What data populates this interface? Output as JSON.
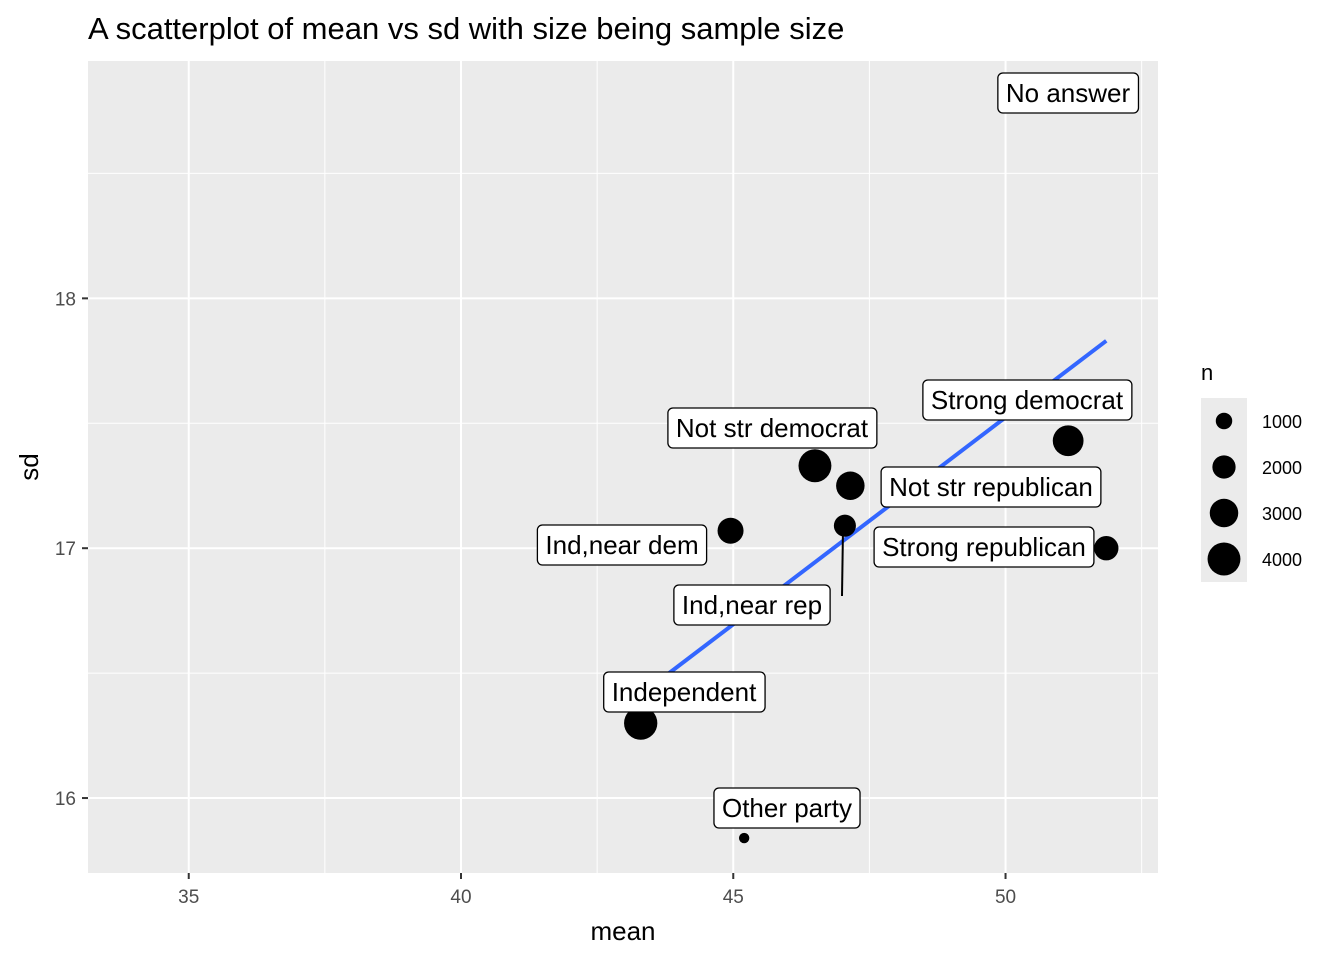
{
  "chart_data": {
    "type": "scatter",
    "title": "A scatterplot of mean vs sd with size being sample size",
    "xlabel": "mean",
    "ylabel": "sd",
    "xlim": [
      33.15,
      52.8
    ],
    "ylim": [
      15.7,
      18.95
    ],
    "x_ticks": [
      35,
      40,
      45,
      50
    ],
    "y_ticks": [
      16,
      17,
      18
    ],
    "grid": true,
    "points": [
      {
        "label": "No answer",
        "x": 52.0,
        "y": 19.0,
        "n": 150
      },
      {
        "label": "Strong democrat",
        "x": 51.15,
        "y": 17.43,
        "n": 3500
      },
      {
        "label": "Not str democrat",
        "x": 46.5,
        "y": 17.33,
        "n": 4000
      },
      {
        "label": "Not str republican",
        "x": 47.15,
        "y": 17.25,
        "n": 3000
      },
      {
        "label": "Ind,near dem",
        "x": 44.95,
        "y": 17.07,
        "n": 2500
      },
      {
        "label": "Ind,near rep",
        "x": 47.05,
        "y": 17.09,
        "n": 1800
      },
      {
        "label": "Strong republican",
        "x": 51.85,
        "y": 17.0,
        "n": 2200
      },
      {
        "label": "Independent",
        "x": 43.3,
        "y": 16.3,
        "n": 4100
      },
      {
        "label": "Other party",
        "x": 45.2,
        "y": 15.84,
        "n": 400
      }
    ],
    "trend_line": {
      "color": "#3366ff",
      "x": [
        43.7,
        51.85
      ],
      "y": [
        16.48,
        17.83
      ]
    },
    "legend": {
      "title": "n",
      "position": "right",
      "entries": [
        1000,
        2000,
        3000,
        4000
      ]
    }
  }
}
